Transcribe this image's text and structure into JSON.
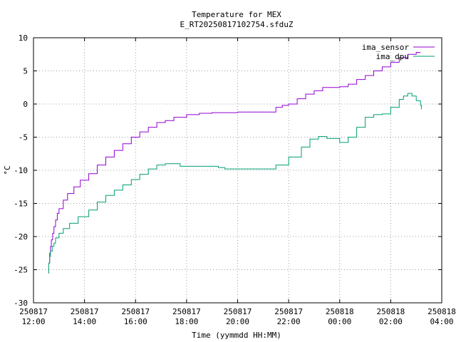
{
  "chart_data": {
    "type": "line",
    "title": "Temperature for MEX",
    "subtitle": "E_RT20250817102754.sfduZ",
    "xlabel": "Time (yymmdd HH:MM)",
    "ylabel": "°C",
    "xlim": [
      "2025-08-17 12:00",
      "2025-08-18 04:00"
    ],
    "ylim": [
      -30,
      10
    ],
    "grid": true,
    "legend_position": "top-right",
    "x_ticks": [
      {
        "date": "250817",
        "time": "12:00"
      },
      {
        "date": "250817",
        "time": "14:00"
      },
      {
        "date": "250817",
        "time": "16:00"
      },
      {
        "date": "250817",
        "time": "18:00"
      },
      {
        "date": "250817",
        "time": "20:00"
      },
      {
        "date": "250817",
        "time": "22:00"
      },
      {
        "date": "250818",
        "time": "00:00"
      },
      {
        "date": "250818",
        "time": "02:00"
      },
      {
        "date": "250818",
        "time": "04:00"
      }
    ],
    "y_ticks": [
      "10",
      "5",
      "0",
      "-5",
      "-10",
      "-15",
      "-20",
      "-25",
      "-30"
    ],
    "series": [
      {
        "name": "ima_sensor",
        "color": "#9400d3",
        "points": [
          [
            "2025-08-17 12:35",
            -25.5
          ],
          [
            "2025-08-17 12:36",
            -24.0
          ],
          [
            "2025-08-17 12:38",
            -22.5
          ],
          [
            "2025-08-17 12:40",
            -21.5
          ],
          [
            "2025-08-17 12:42",
            -20.5
          ],
          [
            "2025-08-17 12:45",
            -19.5
          ],
          [
            "2025-08-17 12:48",
            -18.5
          ],
          [
            "2025-08-17 12:52",
            -17.5
          ],
          [
            "2025-08-17 12:56",
            -16.5
          ],
          [
            "2025-08-17 13:00",
            -15.8
          ],
          [
            "2025-08-17 13:10",
            -14.5
          ],
          [
            "2025-08-17 13:20",
            -13.5
          ],
          [
            "2025-08-17 13:35",
            -12.5
          ],
          [
            "2025-08-17 13:50",
            -11.5
          ],
          [
            "2025-08-17 14:10",
            -10.5
          ],
          [
            "2025-08-17 14:30",
            -9.2
          ],
          [
            "2025-08-17 14:50",
            -8.0
          ],
          [
            "2025-08-17 15:10",
            -7.0
          ],
          [
            "2025-08-17 15:30",
            -6.0
          ],
          [
            "2025-08-17 15:50",
            -5.0
          ],
          [
            "2025-08-17 16:10",
            -4.2
          ],
          [
            "2025-08-17 16:30",
            -3.5
          ],
          [
            "2025-08-17 16:50",
            -2.8
          ],
          [
            "2025-08-17 17:10",
            -2.5
          ],
          [
            "2025-08-17 17:30",
            -2.0
          ],
          [
            "2025-08-17 18:00",
            -1.6
          ],
          [
            "2025-08-17 18:30",
            -1.4
          ],
          [
            "2025-08-17 19:00",
            -1.3
          ],
          [
            "2025-08-17 20:00",
            -1.2
          ],
          [
            "2025-08-17 20:30",
            -1.2
          ],
          [
            "2025-08-17 21:20",
            -1.2
          ],
          [
            "2025-08-17 21:30",
            -0.5
          ],
          [
            "2025-08-17 21:45",
            -0.2
          ],
          [
            "2025-08-17 22:00",
            0.0
          ],
          [
            "2025-08-17 22:20",
            0.8
          ],
          [
            "2025-08-17 22:40",
            1.5
          ],
          [
            "2025-08-17 23:00",
            2.0
          ],
          [
            "2025-08-17 23:20",
            2.5
          ],
          [
            "2025-08-18 00:00",
            2.6
          ],
          [
            "2025-08-18 00:20",
            3.0
          ],
          [
            "2025-08-18 00:40",
            3.7
          ],
          [
            "2025-08-18 01:00",
            4.3
          ],
          [
            "2025-08-18 01:20",
            5.0
          ],
          [
            "2025-08-18 01:40",
            5.6
          ],
          [
            "2025-08-18 02:00",
            6.3
          ],
          [
            "2025-08-18 02:20",
            7.0
          ],
          [
            "2025-08-18 02:40",
            7.5
          ],
          [
            "2025-08-18 03:00",
            7.8
          ],
          [
            "2025-08-18 03:10",
            7.8
          ]
        ]
      },
      {
        "name": "ima_dpu",
        "color": "#009e73",
        "points": [
          [
            "2025-08-17 12:35",
            -25.5
          ],
          [
            "2025-08-17 12:36",
            -24.0
          ],
          [
            "2025-08-17 12:38",
            -23.0
          ],
          [
            "2025-08-17 12:40",
            -22.2
          ],
          [
            "2025-08-17 12:44",
            -21.5
          ],
          [
            "2025-08-17 12:48",
            -21.0
          ],
          [
            "2025-08-17 12:52",
            -20.2
          ],
          [
            "2025-08-17 13:00",
            -19.5
          ],
          [
            "2025-08-17 13:10",
            -18.8
          ],
          [
            "2025-08-17 13:25",
            -18.0
          ],
          [
            "2025-08-17 13:45",
            -17.0
          ],
          [
            "2025-08-17 14:10",
            -16.0
          ],
          [
            "2025-08-17 14:30",
            -14.8
          ],
          [
            "2025-08-17 14:50",
            -13.8
          ],
          [
            "2025-08-17 15:10",
            -13.0
          ],
          [
            "2025-08-17 15:30",
            -12.2
          ],
          [
            "2025-08-17 15:50",
            -11.4
          ],
          [
            "2025-08-17 16:10",
            -10.6
          ],
          [
            "2025-08-17 16:30",
            -9.8
          ],
          [
            "2025-08-17 16:50",
            -9.2
          ],
          [
            "2025-08-17 17:10",
            -9.0
          ],
          [
            "2025-08-17 17:30",
            -9.0
          ],
          [
            "2025-08-17 17:45",
            -9.4
          ],
          [
            "2025-08-17 18:30",
            -9.4
          ],
          [
            "2025-08-17 19:15",
            -9.6
          ],
          [
            "2025-08-17 19:30",
            -9.8
          ],
          [
            "2025-08-17 20:30",
            -9.8
          ],
          [
            "2025-08-17 21:20",
            -9.8
          ],
          [
            "2025-08-17 21:30",
            -9.2
          ],
          [
            "2025-08-17 22:00",
            -8.0
          ],
          [
            "2025-08-17 22:30",
            -6.5
          ],
          [
            "2025-08-17 22:50",
            -5.3
          ],
          [
            "2025-08-17 23:10",
            -4.9
          ],
          [
            "2025-08-17 23:30",
            -5.2
          ],
          [
            "2025-08-18 00:00",
            -5.8
          ],
          [
            "2025-08-18 00:20",
            -5.0
          ],
          [
            "2025-08-18 00:40",
            -3.5
          ],
          [
            "2025-08-18 01:00",
            -2.0
          ],
          [
            "2025-08-18 01:20",
            -1.6
          ],
          [
            "2025-08-18 01:40",
            -1.5
          ],
          [
            "2025-08-18 02:00",
            -0.5
          ],
          [
            "2025-08-18 02:20",
            0.7
          ],
          [
            "2025-08-18 02:30",
            1.2
          ],
          [
            "2025-08-18 02:40",
            1.6
          ],
          [
            "2025-08-18 02:50",
            1.2
          ],
          [
            "2025-08-18 03:00",
            0.5
          ],
          [
            "2025-08-18 03:10",
            -0.2
          ],
          [
            "2025-08-18 03:12",
            -0.8
          ]
        ]
      }
    ]
  }
}
